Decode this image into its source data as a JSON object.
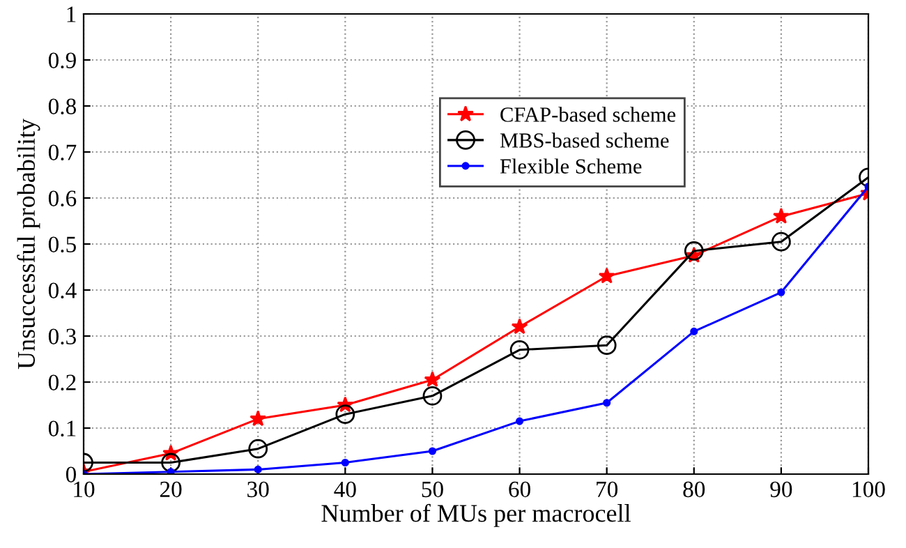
{
  "chart_data": {
    "type": "line",
    "xlabel": "Number of MUs per macrocell",
    "ylabel": "Unsuccessful probability",
    "x": [
      10,
      20,
      30,
      40,
      50,
      60,
      70,
      80,
      90,
      100
    ],
    "series": [
      {
        "name": "CFAP-based scheme",
        "color": "#ff0000",
        "marker": "star",
        "values": [
          0.005,
          0.045,
          0.12,
          0.15,
          0.205,
          0.32,
          0.43,
          0.475,
          0.56,
          0.61
        ]
      },
      {
        "name": "MBS-based scheme",
        "color": "#000000",
        "marker": "circle",
        "values": [
          0.025,
          0.025,
          0.055,
          0.13,
          0.17,
          0.27,
          0.28,
          0.485,
          0.505,
          0.645
        ]
      },
      {
        "name": "Flexible Scheme",
        "color": "#0000ff",
        "marker": "point",
        "values": [
          0.0,
          0.005,
          0.01,
          0.025,
          0.05,
          0.115,
          0.155,
          0.31,
          0.395,
          0.625
        ]
      }
    ],
    "xlim": [
      10,
      100
    ],
    "xticks": [
      10,
      20,
      30,
      40,
      50,
      60,
      70,
      80,
      90,
      100
    ],
    "ylim": [
      0,
      1
    ],
    "yticks": [
      0,
      0.1,
      0.2,
      0.3,
      0.4,
      0.5,
      0.6,
      0.7,
      0.8,
      0.9,
      1
    ],
    "grid": true,
    "legend": "top center",
    "line_style": "solid"
  }
}
